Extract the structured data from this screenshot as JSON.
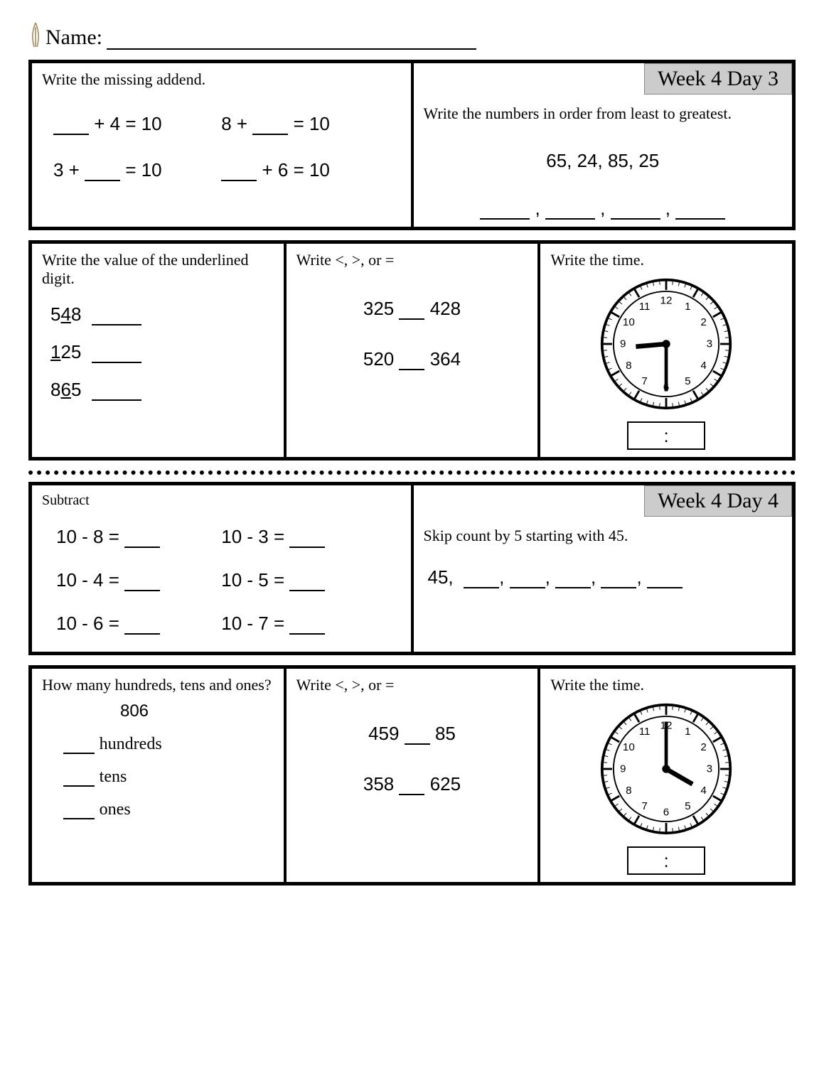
{
  "header": {
    "name_label": "Name:"
  },
  "day3": {
    "badge": "Week 4 Day 3",
    "box1": {
      "title": "Write the missing addend.",
      "eqs": [
        {
          "pre": "",
          "mid": " + 4 = 10"
        },
        {
          "pre": "8 + ",
          "mid": " = 10"
        },
        {
          "pre": "3 + ",
          "mid": " = 10"
        },
        {
          "pre": "",
          "mid": " + 6 = 10"
        }
      ]
    },
    "box2": {
      "title": "Write the numbers in order from least to greatest.",
      "numbers": "65,  24,  85,  25"
    },
    "box3": {
      "title": "Write the value of the underlined digit.",
      "items": [
        {
          "a": "5",
          "u": "4",
          "b": "8"
        },
        {
          "a": "",
          "u": "1",
          "b": "25"
        },
        {
          "a": "8",
          "u": "6",
          "b": "5"
        }
      ]
    },
    "box4": {
      "title": "Write <, >, or =",
      "pairs": [
        {
          "l": "325",
          "r": "428"
        },
        {
          "l": "520",
          "r": "364"
        }
      ]
    },
    "box5": {
      "title": "Write the time.",
      "clock": {
        "hour_angle": -95,
        "minute_angle": 180
      },
      "time_sep": ":"
    }
  },
  "day4": {
    "badge": "Week 4 Day 4",
    "box1": {
      "title": "Subtract",
      "eqs": [
        "10 - 8 = ",
        "10 - 3 = ",
        "10 - 4 = ",
        "10 - 5 = ",
        "10 - 6 = ",
        "10 - 7 = "
      ]
    },
    "box2": {
      "title": "Skip count by 5 starting with 45.",
      "start": "45,"
    },
    "box3": {
      "title": "How many hundreds, tens and ones?",
      "number": "806",
      "labels": [
        "hundreds",
        "tens",
        "ones"
      ]
    },
    "box4": {
      "title": "Write <, >, or =",
      "pairs": [
        {
          "l": "459",
          "r": "85"
        },
        {
          "l": "358",
          "r": "625"
        }
      ]
    },
    "box5": {
      "title": "Write the time.",
      "clock": {
        "hour_angle": 120,
        "minute_angle": 0
      },
      "time_sep": ":"
    }
  }
}
